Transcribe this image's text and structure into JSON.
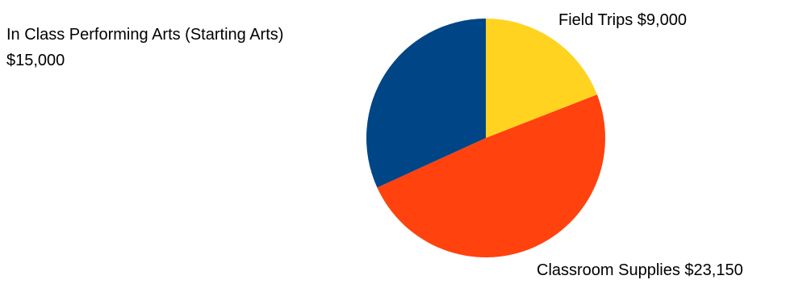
{
  "chart_data": {
    "type": "pie",
    "title": "",
    "slices": [
      {
        "label": "Field Trips",
        "value": 9000,
        "value_text": "$9,000",
        "color": "#FFD320"
      },
      {
        "label": "Classroom Supplies",
        "value": 23150,
        "value_text": "$23,150",
        "color": "#FF420E"
      },
      {
        "label": "In Class Performing Arts (Starting Arts)",
        "value": 15000,
        "value_text": "$15,000",
        "color": "#004586"
      }
    ],
    "start_angle": "12 o'clock",
    "direction": "clockwise",
    "legend": "none"
  }
}
